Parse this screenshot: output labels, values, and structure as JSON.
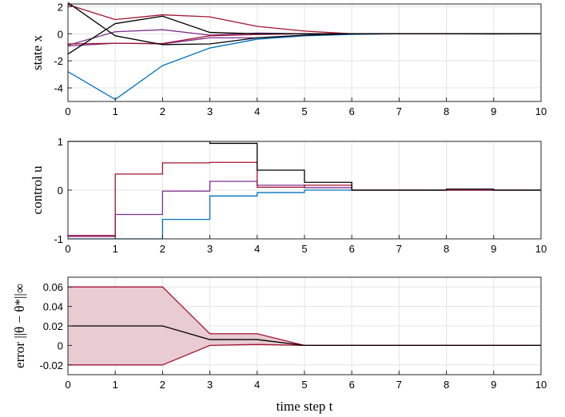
{
  "chart_data": [
    {
      "type": "line",
      "title": "",
      "xlabel": "",
      "ylabel": "state x",
      "xlim": [
        0,
        10
      ],
      "ylim": [
        -5,
        2.2
      ],
      "xticks": [
        0,
        1,
        2,
        3,
        4,
        5,
        6,
        7,
        8,
        9,
        10
      ],
      "yticks": [
        -4,
        -2,
        0,
        2
      ],
      "grid": true,
      "step": false,
      "x": [
        0,
        1,
        2,
        3,
        4,
        5,
        6,
        7,
        8,
        9,
        10
      ],
      "series": [
        {
          "color": "#0072bd",
          "values": [
            -2.8,
            -4.85,
            -2.35,
            -1.05,
            -0.4,
            -0.15,
            -0.05,
            0.0,
            0.0,
            -0.02,
            0.0
          ]
        },
        {
          "color": "#7e2f8e",
          "values": [
            -0.85,
            0.15,
            0.3,
            -0.1,
            0.05,
            0.0,
            0.0,
            0.0,
            0.0,
            0.0,
            0.0
          ]
        },
        {
          "color": "#7e2f8e",
          "values": [
            -0.9,
            -0.7,
            -0.75,
            -0.3,
            -0.3,
            -0.1,
            0.0,
            0.0,
            0.0,
            0.0,
            0.0
          ]
        },
        {
          "color": "#a2142f",
          "values": [
            2.15,
            1.05,
            1.4,
            1.25,
            0.55,
            0.2,
            0.0,
            0.0,
            0.0,
            0.0,
            0.0
          ]
        },
        {
          "color": "#a2142f",
          "values": [
            -0.75,
            -0.7,
            -0.72,
            -0.15,
            -0.05,
            0.0,
            0.0,
            0.0,
            0.0,
            0.0,
            0.0
          ]
        },
        {
          "color": "#000000",
          "values": [
            2.3,
            -0.15,
            -0.8,
            -0.75,
            -0.3,
            -0.1,
            0.0,
            0.0,
            0.0,
            0.0,
            0.0
          ]
        },
        {
          "color": "#000000",
          "values": [
            -1.5,
            0.75,
            1.3,
            0.1,
            0.0,
            0.0,
            0.0,
            0.0,
            0.0,
            0.0,
            0.0
          ]
        }
      ]
    },
    {
      "type": "line",
      "title": "",
      "xlabel": "",
      "ylabel": "control u",
      "xlim": [
        0,
        10
      ],
      "ylim": [
        -1,
        1
      ],
      "xticks": [
        0,
        1,
        2,
        3,
        4,
        5,
        6,
        7,
        8,
        9,
        10
      ],
      "yticks": [
        -1,
        0,
        1
      ],
      "grid": true,
      "step": true,
      "x": [
        0,
        1,
        2,
        3,
        4,
        5,
        6,
        7,
        8,
        9,
        10
      ],
      "series": [
        {
          "color": "#0072bd",
          "values": [
            -1.0,
            -1.0,
            -0.6,
            -0.12,
            -0.05,
            0.0,
            0.0,
            0.0,
            0.0,
            0.0,
            0.0
          ]
        },
        {
          "color": "#7e2f8e",
          "values": [
            -0.95,
            -0.5,
            -0.02,
            0.18,
            0.1,
            0.05,
            0.0,
            0.0,
            0.0,
            0.0,
            0.0
          ]
        },
        {
          "color": "#a2142f",
          "values": [
            -0.93,
            0.33,
            0.56,
            0.57,
            0.06,
            0.1,
            0.0,
            0.0,
            0.0,
            0.0,
            0.0
          ]
        },
        {
          "color": "#000000",
          "values": [
            1.0,
            1.0,
            1.0,
            0.96,
            0.41,
            0.16,
            0.0,
            0.0,
            0.02,
            0.0,
            0.0
          ]
        }
      ]
    },
    {
      "type": "area",
      "title": "",
      "xlabel": "time step t",
      "ylabel": "error ||θ − θ*||∞",
      "xlim": [
        0,
        10
      ],
      "ylim": [
        -0.03,
        0.07
      ],
      "xticks": [
        0,
        1,
        2,
        3,
        4,
        5,
        6,
        7,
        8,
        9,
        10
      ],
      "yticks": [
        -0.02,
        0,
        0.02,
        0.04,
        0.06
      ],
      "ytick_labels": [
        "-0.02",
        "0",
        "0.02",
        "0.04",
        "0.06"
      ],
      "grid": true,
      "x": [
        0,
        1,
        2,
        3,
        4,
        5,
        6,
        7,
        8,
        9,
        10
      ],
      "band": {
        "fill": "#e8ccd2",
        "edge_color": "#a2142f",
        "upper": [
          0.06,
          0.06,
          0.06,
          0.012,
          0.012,
          0.0,
          0.0,
          0.0,
          0.0,
          0.0,
          0.0
        ],
        "lower": [
          -0.02,
          -0.02,
          -0.02,
          0.0,
          0.001,
          0.0,
          0.0,
          0.0,
          0.0,
          0.0,
          0.0
        ]
      },
      "series": [
        {
          "color": "#000000",
          "values": [
            0.02,
            0.02,
            0.02,
            0.006,
            0.006,
            0.0,
            0.0,
            0.0,
            0.0,
            0.0,
            0.0
          ]
        }
      ]
    }
  ]
}
